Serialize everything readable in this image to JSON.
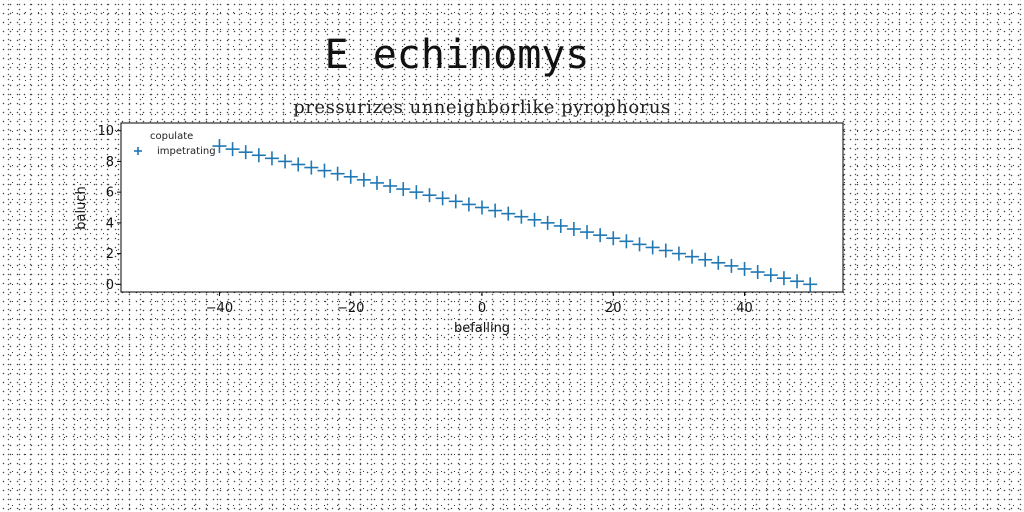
{
  "chart_data": {
    "type": "scatter",
    "suptitle": "E echinomys",
    "title": "pressurizes unneighborlike pyrophorus",
    "xlabel": "befalling",
    "ylabel": "baluch",
    "xlim": [
      -55,
      55
    ],
    "ylim": [
      -0.5,
      10.5
    ],
    "xticks": [
      -40,
      -20,
      0,
      20,
      40
    ],
    "yticks": [
      0,
      2,
      4,
      6,
      8,
      10
    ],
    "xtick_labels": [
      "−40",
      "−20",
      "0",
      "20",
      "40"
    ],
    "ytick_labels": [
      "0",
      "2",
      "4",
      "6",
      "8",
      "10"
    ],
    "legend": {
      "title": "copulate",
      "placement": "upper-left",
      "entries": [
        "impetrating"
      ]
    },
    "grid": false,
    "marker": "+",
    "series": [
      {
        "name": "impetrating",
        "color": "#1f77b4",
        "x": [
          -40,
          -38,
          -36,
          -34,
          -32,
          -30,
          -28,
          -26,
          -24,
          -22,
          -20,
          -18,
          -16,
          -14,
          -12,
          -10,
          -8,
          -6,
          -4,
          -2,
          0,
          2,
          4,
          6,
          8,
          10,
          12,
          14,
          16,
          18,
          20,
          22,
          24,
          26,
          28,
          30,
          32,
          34,
          36,
          38,
          40,
          42,
          44,
          46,
          48,
          50
        ],
        "y": [
          9.0,
          8.8,
          8.6,
          8.4,
          8.2,
          8.0,
          7.8,
          7.6,
          7.4,
          7.2,
          7.0,
          6.8,
          6.6,
          6.4,
          6.2,
          6.0,
          5.8,
          5.6,
          5.4,
          5.2,
          5.0,
          4.8,
          4.6,
          4.4,
          4.2,
          4.0,
          3.8,
          3.6,
          3.4,
          3.2,
          3.0,
          2.8,
          2.6,
          2.4,
          2.2,
          2.0,
          1.8,
          1.6,
          1.4,
          1.2,
          1.0,
          0.8,
          0.6,
          0.4,
          0.2,
          0.0
        ]
      }
    ]
  }
}
